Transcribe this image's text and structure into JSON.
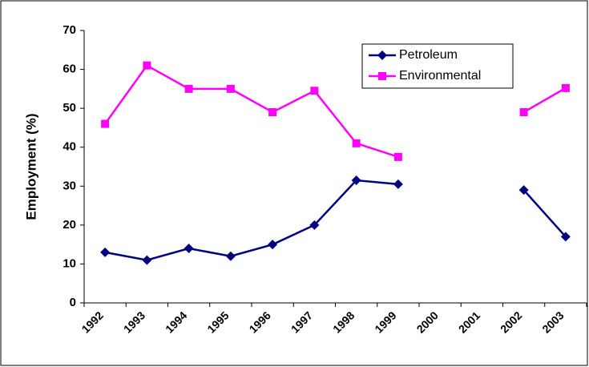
{
  "chart_data": {
    "type": "line",
    "y_label": "Employment (%)",
    "categories": [
      "1992",
      "1993",
      "1994",
      "1995",
      "1996",
      "1997",
      "1998",
      "1999",
      "2000",
      "2001",
      "2002",
      "2003"
    ],
    "series": [
      {
        "name": "Petroleum",
        "color": "#000080",
        "marker": "diamond",
        "values": [
          13,
          11,
          14,
          12,
          15,
          20,
          31.5,
          30.5,
          null,
          null,
          29,
          17
        ]
      },
      {
        "name": "Environmental",
        "color": "#ff00ff",
        "marker": "square",
        "values": [
          46,
          61,
          55,
          55,
          49,
          54.5,
          41,
          37.5,
          null,
          null,
          49,
          55.2
        ]
      }
    ],
    "ylim": [
      0,
      70
    ],
    "yticks": [
      0,
      10,
      20,
      30,
      40,
      50,
      60,
      70
    ],
    "grid": false,
    "legend": "upper right"
  }
}
